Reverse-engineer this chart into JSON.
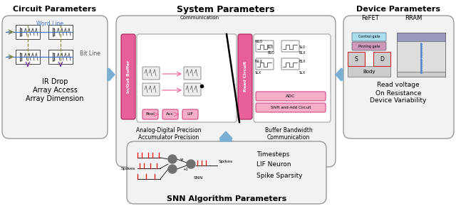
{
  "title_circuit": "Circuit Parameters",
  "title_system": "System Parameters",
  "title_device": "Device Parameters",
  "title_snn": "SNN Algorithm Parameters",
  "bg_color": "#ffffff",
  "pink_color": "#e8609a",
  "pink_light": "#f5afc8",
  "blue_arrow": "#7ab0d4",
  "word_line_color": "#4472c4",
  "bit_line_color": "#8b8b3a",
  "purple_color": "#7030a0",
  "neuron_color": "#707070",
  "ctrl_gate_color": "#aaddee",
  "pinning_gate_color": "#cc99bb",
  "body_color": "#cccccc",
  "rram_blue": "#5588cc",
  "box_ec": "#999999",
  "box_fc": "#f2f2f2"
}
